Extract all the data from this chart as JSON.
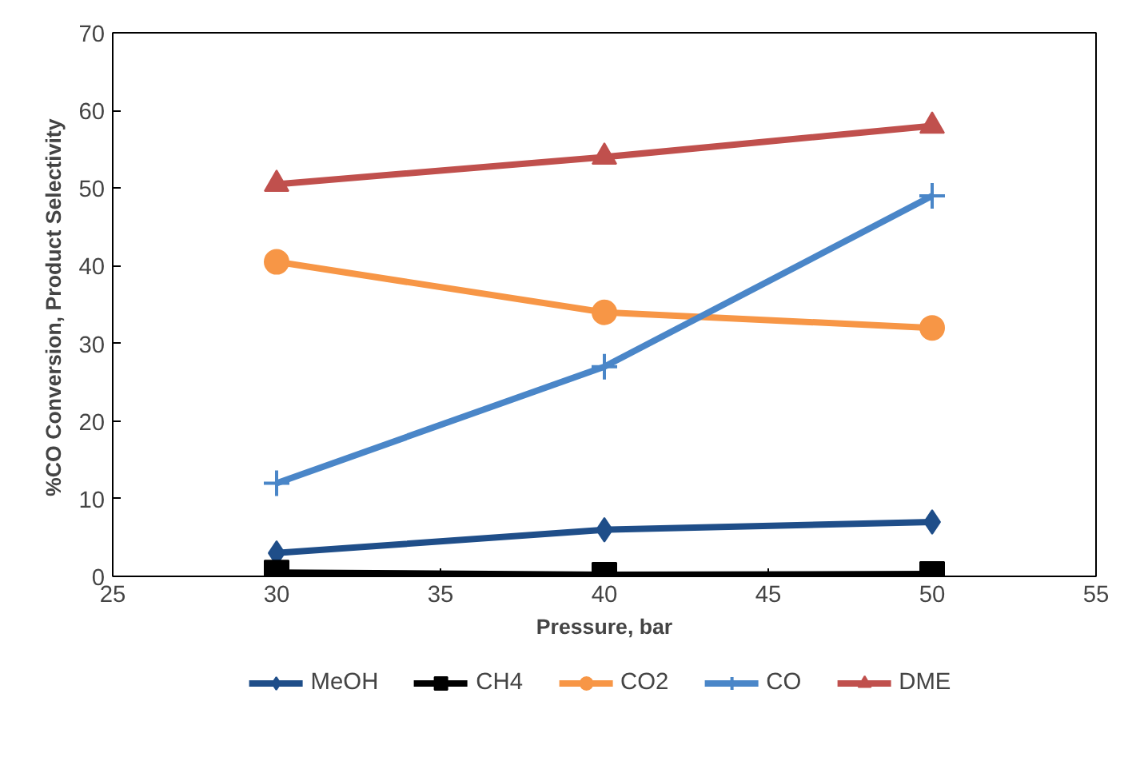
{
  "chart_data": {
    "type": "line",
    "xlabel": "Pressure, bar",
    "ylabel": "%CO Conversion, Product  Selectivity",
    "x": [
      30,
      40,
      50
    ],
    "xlim": [
      25,
      55
    ],
    "xticks": [
      25,
      30,
      35,
      40,
      45,
      50,
      55
    ],
    "ylim": [
      0,
      70
    ],
    "yticks": [
      0,
      10,
      20,
      30,
      40,
      50,
      60,
      70
    ],
    "grid": false,
    "legend": "bottom",
    "series": [
      {
        "name": "MeOH",
        "color": "#1f4e89",
        "marker": "diamond",
        "values": [
          3,
          6,
          7
        ]
      },
      {
        "name": "CH4",
        "color": "#000000",
        "marker": "square",
        "values": [
          0.5,
          0.2,
          0.3
        ]
      },
      {
        "name": "CO2",
        "color": "#f79646",
        "marker": "circle",
        "values": [
          40.5,
          34,
          32
        ]
      },
      {
        "name": "CO",
        "color": "#4a86c8",
        "marker": "cross",
        "values": [
          12,
          27,
          49
        ]
      },
      {
        "name": "DME",
        "color": "#c0504d",
        "marker": "triangle",
        "values": [
          50.5,
          54,
          58
        ]
      }
    ]
  }
}
